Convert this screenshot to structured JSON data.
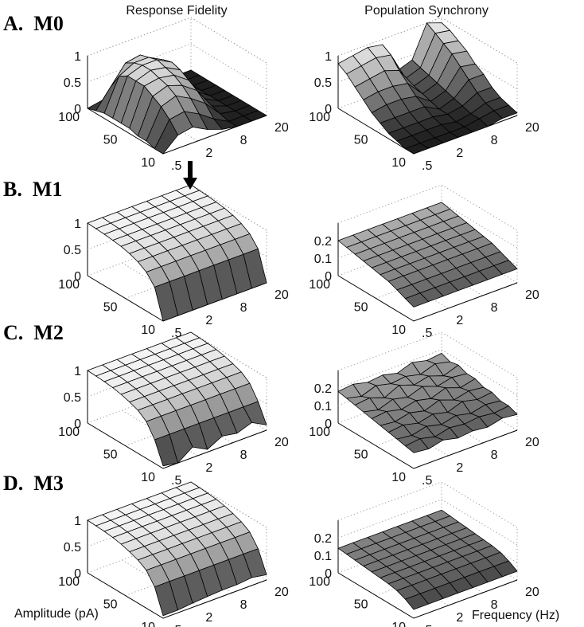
{
  "column_titles": [
    "Response Fidelity",
    "Population Synchrony"
  ],
  "row_labels": [
    "A.  M0",
    "B.  M1",
    "C.  M2",
    "D.  M3"
  ],
  "axis_labels": {
    "x": "Amplitude (pA)",
    "y": "Frequency (Hz)"
  },
  "colors": {
    "surface_high": "#f5f5f5",
    "surface_low": "#1e1e1e",
    "edge": "#000000",
    "grid": "#9a9a9a",
    "arrow": "#000000"
  },
  "chart_data": [
    {
      "type": "surface",
      "row": "M0",
      "column": "Response Fidelity",
      "x_ticks": [
        "100",
        "50",
        "10"
      ],
      "y_ticks": [
        ".5",
        "2",
        "8",
        "20"
      ],
      "z_ticks": [
        "0",
        "0.5",
        "1"
      ],
      "zlim": [
        0,
        1
      ],
      "amplitude_pa": [
        100,
        90,
        80,
        70,
        60,
        50,
        40,
        30,
        20,
        10
      ],
      "frequency_hz": [
        0.5,
        1,
        2,
        3,
        5,
        8,
        12,
        20
      ],
      "z": [
        [
          0.0,
          0.05,
          0.25,
          0.55,
          0.35,
          0.08,
          0.0,
          0.0
        ],
        [
          0.05,
          0.4,
          0.75,
          0.8,
          0.55,
          0.15,
          0.0,
          0.0
        ],
        [
          0.1,
          0.7,
          0.85,
          0.85,
          0.7,
          0.2,
          0.0,
          0.0
        ],
        [
          0.1,
          0.8,
          0.9,
          0.9,
          0.75,
          0.25,
          0.0,
          0.0
        ],
        [
          0.1,
          0.8,
          0.9,
          0.85,
          0.7,
          0.2,
          0.0,
          0.0
        ],
        [
          0.1,
          0.8,
          0.85,
          0.8,
          0.6,
          0.15,
          0.0,
          0.0
        ],
        [
          0.05,
          0.7,
          0.8,
          0.7,
          0.5,
          0.1,
          0.0,
          0.0
        ],
        [
          0.05,
          0.6,
          0.7,
          0.55,
          0.35,
          0.05,
          0.0,
          0.0
        ],
        [
          0.0,
          0.45,
          0.5,
          0.35,
          0.15,
          0.0,
          0.0,
          0.0
        ],
        [
          0.0,
          0.25,
          0.3,
          0.15,
          0.05,
          0.0,
          0.0,
          0.0
        ]
      ]
    },
    {
      "type": "surface",
      "row": "M0",
      "column": "Population Synchrony",
      "x_ticks": [
        "100",
        "50",
        "10"
      ],
      "y_ticks": [
        ".5",
        "2",
        "8",
        "20"
      ],
      "z_ticks": [
        "0",
        "0.5",
        "1"
      ],
      "zlim": [
        0,
        1
      ],
      "amplitude_pa": [
        100,
        90,
        80,
        70,
        60,
        50,
        40,
        30,
        20,
        10
      ],
      "frequency_hz": [
        0.5,
        1,
        2,
        3,
        5,
        8,
        12,
        20
      ],
      "z": [
        [
          0.85,
          0.9,
          0.95,
          0.9,
          0.3,
          0.4,
          1.0,
          0.9
        ],
        [
          0.75,
          0.8,
          0.85,
          0.8,
          0.25,
          0.35,
          0.9,
          0.85
        ],
        [
          0.6,
          0.65,
          0.7,
          0.6,
          0.2,
          0.3,
          0.8,
          0.75
        ],
        [
          0.45,
          0.5,
          0.5,
          0.45,
          0.15,
          0.25,
          0.7,
          0.65
        ],
        [
          0.3,
          0.35,
          0.35,
          0.3,
          0.1,
          0.2,
          0.55,
          0.5
        ],
        [
          0.2,
          0.2,
          0.2,
          0.2,
          0.05,
          0.15,
          0.4,
          0.4
        ],
        [
          0.1,
          0.1,
          0.1,
          0.1,
          0.05,
          0.1,
          0.25,
          0.25
        ],
        [
          0.05,
          0.05,
          0.05,
          0.05,
          0.0,
          0.05,
          0.15,
          0.15
        ],
        [
          0.0,
          0.0,
          0.0,
          0.0,
          0.0,
          0.05,
          0.1,
          0.1
        ],
        [
          0.0,
          0.0,
          0.0,
          0.0,
          0.0,
          0.0,
          0.05,
          0.05
        ]
      ]
    },
    {
      "type": "surface",
      "row": "M1",
      "column": "Response Fidelity",
      "x_ticks": [
        "100",
        "50",
        "10"
      ],
      "y_ticks": [
        ".5",
        "2",
        "8",
        "20"
      ],
      "z_ticks": [
        "0",
        "0.5",
        "1"
      ],
      "zlim": [
        0,
        1
      ],
      "amplitude_pa": [
        100,
        90,
        80,
        70,
        60,
        50,
        40,
        30,
        20,
        10
      ],
      "frequency_hz": [
        0.5,
        1,
        2,
        3,
        5,
        8,
        12,
        20
      ],
      "z": [
        [
          1.0,
          1.0,
          1.0,
          1.0,
          1.0,
          1.0,
          1.0,
          1.0
        ],
        [
          0.99,
          0.99,
          0.99,
          0.99,
          0.99,
          0.99,
          0.99,
          0.99
        ],
        [
          0.98,
          0.98,
          0.98,
          0.98,
          0.98,
          0.98,
          0.98,
          0.98
        ],
        [
          0.96,
          0.96,
          0.96,
          0.96,
          0.96,
          0.96,
          0.96,
          0.96
        ],
        [
          0.94,
          0.94,
          0.94,
          0.94,
          0.94,
          0.94,
          0.94,
          0.94
        ],
        [
          0.9,
          0.9,
          0.9,
          0.9,
          0.9,
          0.9,
          0.9,
          0.9
        ],
        [
          0.84,
          0.84,
          0.84,
          0.84,
          0.84,
          0.84,
          0.84,
          0.84
        ],
        [
          0.74,
          0.74,
          0.74,
          0.74,
          0.74,
          0.74,
          0.74,
          0.74
        ],
        [
          0.55,
          0.55,
          0.55,
          0.55,
          0.55,
          0.55,
          0.55,
          0.55
        ],
        [
          0.0,
          0.0,
          0.0,
          0.0,
          0.0,
          0.0,
          0.0,
          0.0
        ]
      ]
    },
    {
      "type": "surface",
      "row": "M1",
      "column": "Population Synchrony",
      "x_ticks": [
        "100",
        "50",
        "10"
      ],
      "y_ticks": [
        ".5",
        "2",
        "8",
        "20"
      ],
      "z_ticks": [
        "0",
        "0.1",
        "0.2"
      ],
      "zlim": [
        0,
        0.3
      ],
      "amplitude_pa": [
        100,
        90,
        80,
        70,
        60,
        50,
        40,
        30,
        20,
        10
      ],
      "frequency_hz": [
        0.5,
        1,
        2,
        3,
        5,
        8,
        12,
        20
      ],
      "z": [
        [
          0.2,
          0.2,
          0.2,
          0.2,
          0.2,
          0.2,
          0.2,
          0.2
        ],
        [
          0.19,
          0.19,
          0.19,
          0.19,
          0.19,
          0.19,
          0.19,
          0.19
        ],
        [
          0.18,
          0.18,
          0.18,
          0.18,
          0.18,
          0.18,
          0.18,
          0.18
        ],
        [
          0.17,
          0.17,
          0.17,
          0.17,
          0.17,
          0.17,
          0.17,
          0.17
        ],
        [
          0.16,
          0.16,
          0.16,
          0.16,
          0.16,
          0.16,
          0.16,
          0.16
        ],
        [
          0.15,
          0.15,
          0.15,
          0.15,
          0.15,
          0.15,
          0.15,
          0.15
        ],
        [
          0.14,
          0.14,
          0.14,
          0.14,
          0.14,
          0.14,
          0.14,
          0.14
        ],
        [
          0.12,
          0.12,
          0.12,
          0.12,
          0.12,
          0.12,
          0.12,
          0.12
        ],
        [
          0.1,
          0.1,
          0.1,
          0.1,
          0.1,
          0.1,
          0.1,
          0.1
        ],
        [
          0.08,
          0.08,
          0.08,
          0.08,
          0.08,
          0.08,
          0.08,
          0.08
        ]
      ]
    },
    {
      "type": "surface",
      "row": "M2",
      "column": "Response Fidelity",
      "x_ticks": [
        "100",
        "50",
        "10"
      ],
      "y_ticks": [
        ".5",
        "2",
        "8",
        "20"
      ],
      "z_ticks": [
        "0",
        "0.5",
        "1"
      ],
      "zlim": [
        0,
        1
      ],
      "amplitude_pa": [
        100,
        90,
        80,
        70,
        60,
        50,
        40,
        30,
        20,
        10
      ],
      "frequency_hz": [
        0.5,
        1,
        2,
        3,
        5,
        8,
        12,
        20
      ],
      "z": [
        [
          1.0,
          1.0,
          1.0,
          1.0,
          1.0,
          1.0,
          1.0,
          1.0
        ],
        [
          0.99,
          0.99,
          0.99,
          0.99,
          0.99,
          0.99,
          0.99,
          0.99
        ],
        [
          0.98,
          0.98,
          0.98,
          0.98,
          0.98,
          0.98,
          0.98,
          0.98
        ],
        [
          0.96,
          0.96,
          0.96,
          0.96,
          0.96,
          0.96,
          0.96,
          0.96
        ],
        [
          0.93,
          0.93,
          0.93,
          0.93,
          0.93,
          0.93,
          0.93,
          0.93
        ],
        [
          0.88,
          0.88,
          0.88,
          0.88,
          0.88,
          0.88,
          0.88,
          0.88
        ],
        [
          0.82,
          0.82,
          0.82,
          0.82,
          0.82,
          0.82,
          0.82,
          0.82
        ],
        [
          0.7,
          0.7,
          0.7,
          0.7,
          0.7,
          0.7,
          0.7,
          0.7
        ],
        [
          0.45,
          0.45,
          0.45,
          0.45,
          0.45,
          0.45,
          0.45,
          0.45
        ],
        [
          0.05,
          0.0,
          0.2,
          0.05,
          0.2,
          0.15,
          0.25,
          0.1
        ]
      ]
    },
    {
      "type": "surface",
      "row": "M2",
      "column": "Population Synchrony",
      "x_ticks": [
        "100",
        "50",
        "10"
      ],
      "y_ticks": [
        ".5",
        "2",
        "8",
        "20"
      ],
      "z_ticks": [
        "0",
        "0.1",
        "0.2"
      ],
      "zlim": [
        0,
        0.3
      ],
      "amplitude_pa": [
        100,
        90,
        80,
        70,
        60,
        50,
        40,
        30,
        20,
        10
      ],
      "frequency_hz": [
        0.5,
        1,
        2,
        3,
        5,
        8,
        12,
        20
      ],
      "z": [
        [
          0.18,
          0.19,
          0.17,
          0.18,
          0.16,
          0.19,
          0.17,
          0.18
        ],
        [
          0.17,
          0.15,
          0.18,
          0.16,
          0.17,
          0.15,
          0.18,
          0.16
        ],
        [
          0.16,
          0.17,
          0.14,
          0.18,
          0.15,
          0.17,
          0.14,
          0.17
        ],
        [
          0.15,
          0.13,
          0.16,
          0.14,
          0.17,
          0.14,
          0.16,
          0.15
        ],
        [
          0.14,
          0.15,
          0.13,
          0.15,
          0.13,
          0.16,
          0.13,
          0.15
        ],
        [
          0.13,
          0.12,
          0.14,
          0.12,
          0.15,
          0.12,
          0.14,
          0.13
        ],
        [
          0.12,
          0.13,
          0.11,
          0.13,
          0.11,
          0.14,
          0.12,
          0.13
        ],
        [
          0.11,
          0.1,
          0.12,
          0.1,
          0.12,
          0.1,
          0.12,
          0.11
        ],
        [
          0.1,
          0.11,
          0.09,
          0.11,
          0.1,
          0.11,
          0.1,
          0.11
        ],
        [
          0.09,
          0.08,
          0.1,
          0.08,
          0.09,
          0.08,
          0.1,
          0.09
        ]
      ]
    },
    {
      "type": "surface",
      "row": "M3",
      "column": "Response Fidelity",
      "x_ticks": [
        "100",
        "50",
        "10"
      ],
      "y_ticks": [
        ".5",
        "2",
        "8",
        "20"
      ],
      "z_ticks": [
        "0",
        "0.5",
        "1"
      ],
      "zlim": [
        0,
        1
      ],
      "amplitude_pa": [
        100,
        90,
        80,
        70,
        60,
        50,
        40,
        30,
        20,
        10
      ],
      "frequency_hz": [
        0.5,
        1,
        2,
        3,
        5,
        8,
        12,
        20
      ],
      "z": [
        [
          1.0,
          1.0,
          1.0,
          1.0,
          1.0,
          1.0,
          1.0,
          1.0
        ],
        [
          0.99,
          0.99,
          0.99,
          0.99,
          0.99,
          0.99,
          0.99,
          0.99
        ],
        [
          0.98,
          0.98,
          0.98,
          0.98,
          0.98,
          0.98,
          0.98,
          0.98
        ],
        [
          0.96,
          0.96,
          0.96,
          0.96,
          0.96,
          0.96,
          0.96,
          0.96
        ],
        [
          0.93,
          0.93,
          0.93,
          0.93,
          0.93,
          0.93,
          0.93,
          0.93
        ],
        [
          0.88,
          0.88,
          0.88,
          0.88,
          0.88,
          0.88,
          0.88,
          0.88
        ],
        [
          0.82,
          0.82,
          0.82,
          0.82,
          0.82,
          0.82,
          0.82,
          0.82
        ],
        [
          0.72,
          0.72,
          0.72,
          0.72,
          0.72,
          0.72,
          0.72,
          0.72
        ],
        [
          0.5,
          0.5,
          0.5,
          0.5,
          0.5,
          0.5,
          0.5,
          0.5
        ],
        [
          0.05,
          0.05,
          0.08,
          0.1,
          0.12,
          0.12,
          0.15,
          0.1
        ]
      ]
    },
    {
      "type": "surface",
      "row": "M3",
      "column": "Population Synchrony",
      "x_ticks": [
        "100",
        "50",
        "10"
      ],
      "y_ticks": [
        ".5",
        "2",
        "8",
        "20"
      ],
      "z_ticks": [
        "0",
        "0.1",
        "0.2"
      ],
      "zlim": [
        0,
        0.3
      ],
      "amplitude_pa": [
        100,
        90,
        80,
        70,
        60,
        50,
        40,
        30,
        20,
        10
      ],
      "frequency_hz": [
        0.5,
        1,
        2,
        3,
        5,
        8,
        12,
        20
      ],
      "z": [
        [
          0.14,
          0.14,
          0.14,
          0.14,
          0.14,
          0.14,
          0.14,
          0.14
        ],
        [
          0.135,
          0.135,
          0.135,
          0.135,
          0.135,
          0.135,
          0.135,
          0.135
        ],
        [
          0.13,
          0.13,
          0.13,
          0.13,
          0.13,
          0.13,
          0.13,
          0.13
        ],
        [
          0.125,
          0.125,
          0.125,
          0.125,
          0.125,
          0.125,
          0.125,
          0.125
        ],
        [
          0.12,
          0.12,
          0.12,
          0.12,
          0.12,
          0.12,
          0.12,
          0.12
        ],
        [
          0.115,
          0.115,
          0.115,
          0.115,
          0.115,
          0.115,
          0.115,
          0.115
        ],
        [
          0.11,
          0.11,
          0.11,
          0.11,
          0.11,
          0.11,
          0.11,
          0.11
        ],
        [
          0.1,
          0.1,
          0.1,
          0.1,
          0.1,
          0.1,
          0.1,
          0.1
        ],
        [
          0.08,
          0.08,
          0.08,
          0.08,
          0.08,
          0.08,
          0.08,
          0.08
        ],
        [
          0.05,
          0.05,
          0.05,
          0.05,
          0.05,
          0.05,
          0.05,
          0.05
        ]
      ]
    }
  ]
}
